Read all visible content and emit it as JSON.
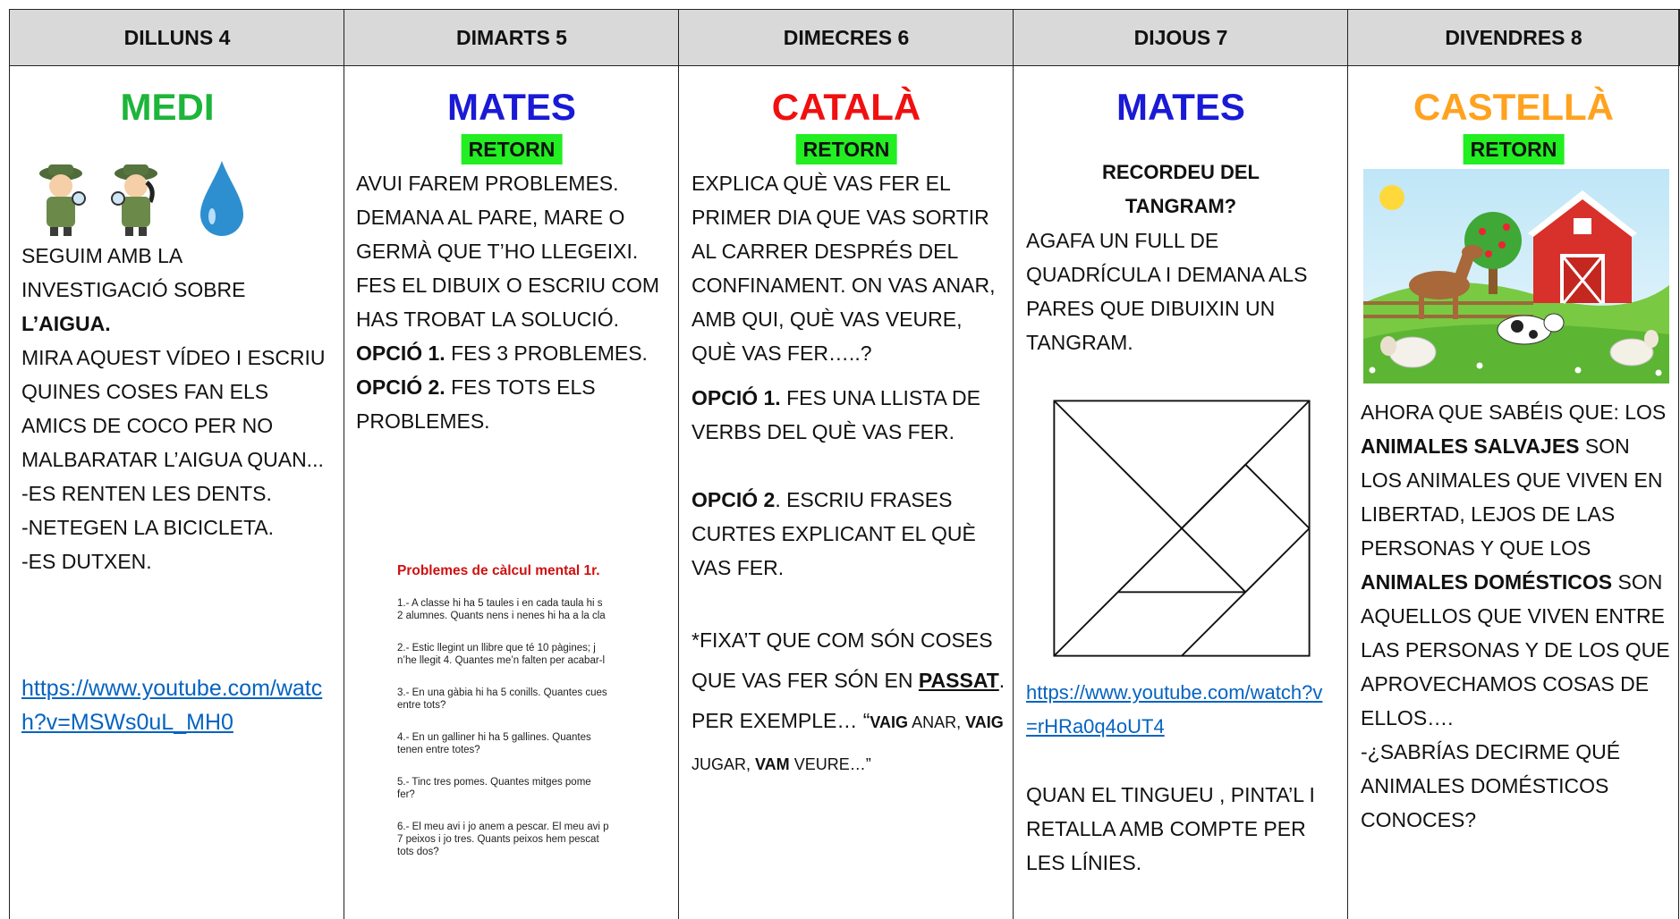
{
  "header": {
    "days": [
      "DILLUNS 4",
      "DIMARTS 5",
      "DIMECRES 6",
      "DIJOUS 7",
      "DIVENDRES 8"
    ]
  },
  "columns": [
    {
      "subject": "MEDI",
      "text": [
        "SEGUIM AMB LA INVESTIGACIÓ  SOBRE",
        "L’AIGUA.",
        "MIRA AQUEST VÍDEO I ESCRIU QUINES COSES FAN ELS AMICS DE COCO PER NO MALBARATAR L’AIGUA QUAN...",
        "-ES RENTEN LES DENTS.",
        "-NETEGEN LA BICICLETA.",
        "-ES DUTXEN."
      ],
      "link": "https://www.youtube.com/watch?v=MSWs0uL_MH0"
    },
    {
      "subject": "MATES",
      "tag": "RETORN",
      "text": [
        "AVUI FAREM PROBLEMES. DEMANA AL PARE, MARE O GERMÀ QUE T’HO LLEGEIXI.",
        "FES EL DIBUIX O ESCRIU COM HAS TROBAT LA SOLUCIÓ.",
        "OPCIÓ 1.",
        " FES 3 PROBLEMES.",
        "OPCIÓ 2.",
        " FES TOTS ELS PROBLEMES."
      ],
      "worksheet": {
        "title": "Problemes de càlcul mental 1r.",
        "items": [
          [
            "1.- A classe hi ha 5 taules i en cada taula hi s",
            "2 alumnes. Quants nens i nenes hi ha a la cla"
          ],
          [
            "2.- Estic llegint un llibre que té 10 pàgines; j",
            "n’he llegit 4. Quantes me’n falten per acabar-l"
          ],
          [
            "3.- En una gàbia hi ha 5 conills. Quantes cues",
            "entre tots?"
          ],
          [
            "4.- En un galliner hi ha 5 gallines. Quantes",
            "tenen entre totes?"
          ],
          [
            "5.- Tinc tres pomes. Quantes mitges pome",
            "fer?"
          ],
          [
            "6.- El meu avi i jo anem a pescar. El meu avi p",
            "7 peixos i jo tres. Quants peixos hem pescat",
            "tots dos?"
          ]
        ]
      }
    },
    {
      "subject": "CATALÀ",
      "tag": "RETORN",
      "text": [
        "EXPLICA QUÈ VAS FER EL PRIMER DIA QUE VAS SORTIR AL CARRER DESPRÉS DEL CONFINAMENT. ON VAS ANAR, AMB QUI, QUÈ VAS VEURE, QUÈ VAS FER…..?",
        "OPCIÓ 1.",
        " FES UNA LLISTA DE VERBS DEL QUÈ VAS FER.",
        "OPCIÓ 2",
        ". ESCRIU FRASES CURTES EXPLICANT EL QUÈ VAS FER.",
        "*FIXA’T QUE COM SÓN COSES QUE VAS FER SÓN EN ",
        "PASSAT",
        ". PER EXEMPLE… “",
        "VAIG",
        " ANAR, ",
        "VAIG",
        " JUGAR, ",
        "VAM",
        " VEURE…”"
      ]
    },
    {
      "subject": "MATES",
      "text": [
        "RECORDEU  DEL TANGRAM?",
        "AGAFA UN FULL DE QUADRÍCULA I DEMANA ALS PARES QUE DIBUIXIN UN TANGRAM.",
        "QUAN EL TINGUEU , PINTA’L I RETALLA AMB COMPTE PER LES LÍNIES."
      ],
      "link": "https://www.youtube.com/watch?v=rHRa0q4oUT4"
    },
    {
      "subject": "CASTELLÀ",
      "tag": "RETORN",
      "text": [
        "AHORA QUE SABÉIS QUE: LOS ",
        "ANIMALES SALVAJES",
        " SON LOS ANIMALES QUE VIVEN EN LIBERTAD, LEJOS DE LAS PERSONAS Y QUE LOS ",
        "ANIMALES DOMÉSTICOS",
        " SON AQUELLOS QUE VIVEN ENTRE LAS PERSONAS Y DE LOS QUE APROVECHAMOS COSAS DE ELLOS….",
        "-¿SABRÍAS DECIRME QUÉ ANIMALES DOMÉSTICOS CONOCES?"
      ]
    }
  ]
}
